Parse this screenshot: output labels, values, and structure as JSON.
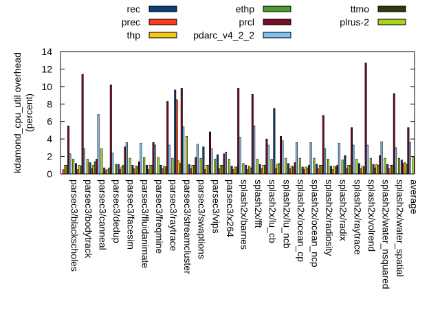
{
  "chart_data": {
    "type": "bar",
    "ylabel": "kdamond_cpu_util overhead\n(percent)",
    "ylim": [
      0,
      14
    ],
    "yticks": [
      0,
      2,
      4,
      6,
      8,
      10,
      12,
      14
    ],
    "grid": false,
    "legend_position": "top",
    "categories": [
      "parsec3/blackscholes",
      "parsec3/bodytrack",
      "parsec3/canneal",
      "parsec3/dedup",
      "parsec3/facesim",
      "parsec3/fluidanimate",
      "parsec3/freqmine",
      "parsec3/raytrace",
      "parsec3/streamcluster",
      "parsec3/swaptions",
      "parsec3/vips",
      "parsec3/x264",
      "splash2x/barnes",
      "splash2x/fft",
      "splash2x/lu_cb",
      "splash2x/lu_ncb",
      "splash2x/ocean_cp",
      "splash2x/ocean_ncp",
      "splash2x/radiosity",
      "splash2x/radix",
      "splash2x/raytrace",
      "splash2x/volrend",
      "splash2x/water_nsquared",
      "splash2x/water_spatial",
      "average"
    ],
    "series": [
      {
        "name": "rec",
        "color": "#0b3f7a",
        "values": [
          0.0,
          1.2,
          1.3,
          0.7,
          1.1,
          1.0,
          1.0,
          1.0,
          9.6,
          1.1,
          3.1,
          2.2,
          0.9,
          1.0,
          1.1,
          7.5,
          1.2,
          0.8,
          1.1,
          0.9,
          2.1,
          1.2,
          1.1,
          1.1,
          1.6
        ]
      },
      {
        "name": "prec",
        "color": "#ff3b1e",
        "values": [
          0.5,
          0.5,
          0.6,
          0.4,
          0.5,
          0.6,
          0.5,
          0.6,
          8.5,
          0.6,
          0.5,
          0.6,
          0.5,
          0.5,
          0.6,
          0.6,
          0.6,
          0.5,
          0.6,
          0.5,
          0.6,
          0.6,
          0.7,
          0.6,
          1.2
        ]
      },
      {
        "name": "thp",
        "color": "#f5c518",
        "values": [
          1.0,
          1.0,
          1.0,
          0.5,
          0.8,
          0.9,
          1.0,
          0.9,
          1.5,
          1.0,
          1.0,
          1.0,
          0.8,
          0.9,
          1.0,
          1.1,
          0.9,
          0.8,
          1.0,
          0.9,
          1.0,
          0.9,
          1.1,
          1.0,
          1.3
        ]
      },
      {
        "name": "ethp",
        "color": "#4c9b2e",
        "values": [
          1.0,
          0.9,
          1.4,
          0.7,
          1.0,
          0.9,
          1.0,
          0.8,
          1.2,
          1.0,
          1.0,
          1.0,
          0.8,
          0.7,
          1.0,
          1.2,
          0.8,
          0.7,
          1.0,
          0.8,
          1.0,
          0.8,
          1.0,
          1.0,
          1.1
        ]
      },
      {
        "name": "prcl",
        "color": "#7b0c24",
        "values": [
          5.5,
          11.4,
          1.7,
          10.2,
          3.1,
          1.4,
          3.6,
          8.3,
          9.8,
          1.9,
          4.8,
          2.3,
          9.8,
          9.1,
          4.0,
          4.3,
          1.3,
          1.0,
          6.7,
          1.0,
          5.3,
          12.7,
          2.1,
          9.2,
          5.3
        ]
      },
      {
        "name": "pdarc_v4_2_2",
        "color": "#7ec0f0",
        "values": [
          2.3,
          2.9,
          6.8,
          2.4,
          3.6,
          3.5,
          3.3,
          3.3,
          5.4,
          3.4,
          2.9,
          2.5,
          4.2,
          5.5,
          3.3,
          3.8,
          3.6,
          3.6,
          2.9,
          3.5,
          3.3,
          3.3,
          3.7,
          3.0,
          3.6
        ]
      },
      {
        "name": "ttmo",
        "color": "#2f3a0f",
        "values": [
          0.0,
          0.0,
          0.0,
          0.0,
          0.0,
          0.0,
          0.0,
          0.0,
          0.0,
          0.0,
          0.0,
          0.0,
          0.0,
          0.0,
          0.0,
          0.0,
          0.0,
          0.0,
          0.0,
          0.0,
          0.0,
          0.0,
          0.0,
          0.0,
          0.0
        ]
      },
      {
        "name": "plrus-2",
        "color": "#a9d41c",
        "values": [
          1.7,
          1.7,
          2.9,
          1.1,
          1.8,
          1.9,
          1.9,
          1.8,
          4.3,
          1.8,
          1.7,
          1.7,
          1.2,
          1.7,
          1.7,
          1.8,
          1.8,
          1.8,
          1.7,
          1.6,
          1.7,
          1.8,
          1.8,
          1.8,
          1.9
        ]
      }
    ]
  }
}
